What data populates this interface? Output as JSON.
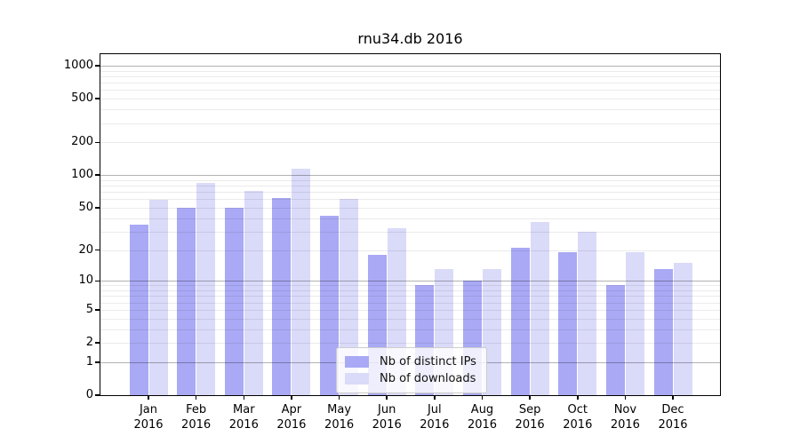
{
  "chart_data": {
    "type": "bar",
    "title": "rnu34.db 2016",
    "categories": [
      "Jan",
      "Feb",
      "Mar",
      "Apr",
      "May",
      "Jun",
      "Jul",
      "Aug",
      "Sep",
      "Oct",
      "Nov",
      "Dec"
    ],
    "x_year_label": "2016",
    "series": [
      {
        "name": "Nb of distinct IPs",
        "color": "#a9a9f5",
        "values": [
          35,
          50,
          50,
          61,
          42,
          18,
          9,
          10,
          21,
          19,
          9,
          13
        ]
      },
      {
        "name": "Nb of downloads",
        "color": "#dadaf9",
        "values": [
          59,
          85,
          72,
          115,
          60,
          32,
          13,
          13,
          37,
          30,
          19,
          15
        ]
      }
    ],
    "yscale": "symlog",
    "yticks": [
      0,
      1,
      2,
      5,
      10,
      20,
      50,
      100,
      200,
      500,
      1000
    ],
    "ytick_labels": [
      "0",
      "1",
      "2",
      "5",
      "10",
      "20",
      "50",
      "100",
      "200",
      "500",
      "1000"
    ],
    "ylim": [
      0,
      1275
    ],
    "grid": true,
    "legend_position": "lower center"
  }
}
